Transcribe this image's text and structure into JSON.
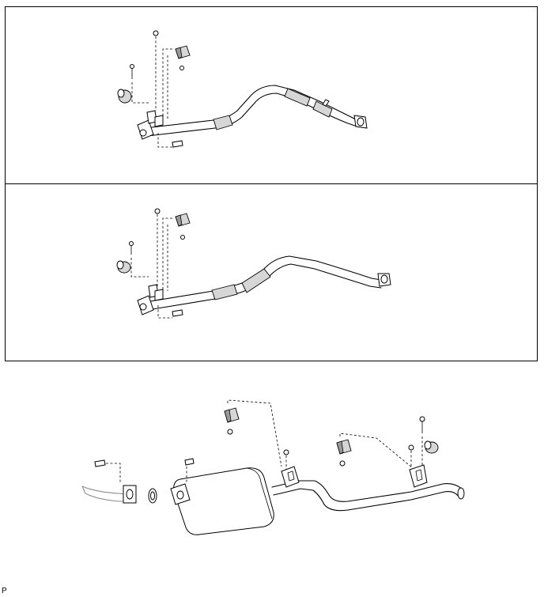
{
  "figure": {
    "code": "P",
    "panels": [
      {
        "id": "top",
        "contents": "front-exhaust-pipe-assembly-variant-a"
      },
      {
        "id": "middle",
        "contents": "front-exhaust-pipe-assembly-variant-b"
      }
    ],
    "lower_assembly": "tail-pipe-with-muffler"
  }
}
